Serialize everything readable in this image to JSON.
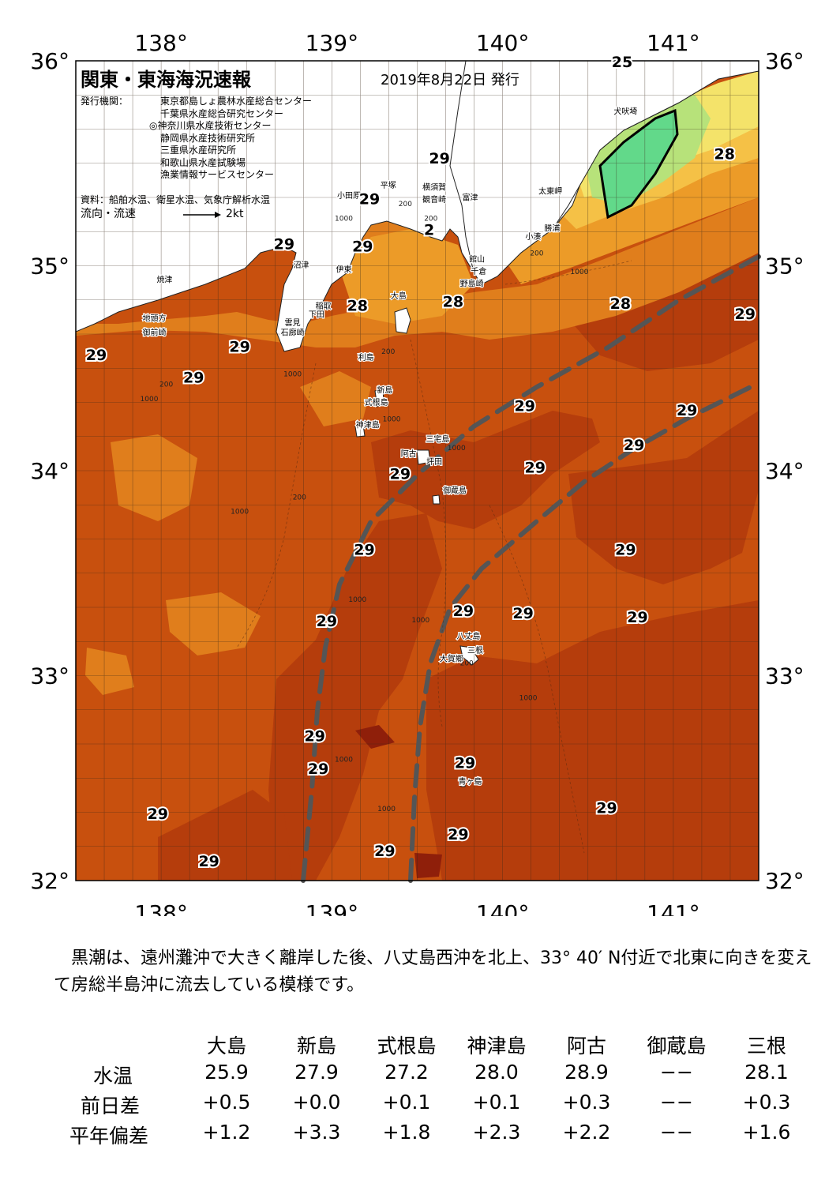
{
  "title": "関東・東海海況速報",
  "issue_date": "2019年8月22日 発行",
  "issuers_label": "発行機関：",
  "issuers": [
    "東京都島しょ農林水産総合センター",
    "千葉県水産総合研究センター",
    "◎神奈川県水産技術センター",
    "静岡県水産技術研究所",
    "三重県水産研究所",
    "和歌山県水産試験場",
    "漁業情報サービスセンター"
  ],
  "sources": "資料：船舶水温、衛星水温、気象庁解析水温",
  "current_legend": "流向・流速",
  "current_scale": "2kt",
  "axes": {
    "lon_labels": [
      "138°",
      "139°",
      "140°",
      "141°"
    ],
    "lat_labels": [
      "36°",
      "35°",
      "34°",
      "33°",
      "32°"
    ],
    "lon_range": [
      137.5,
      141.5
    ],
    "lat_range": [
      32,
      36
    ]
  },
  "colors": {
    "sea_29": "#c8500e",
    "sea_28": "#d7650f",
    "sea_warm_band": "#e07e1c",
    "sea_27": "#ec9b28",
    "sea_26": "#f5c146",
    "sea_25": "#f4e36a",
    "sea_24": "#b7e27a",
    "sea_23": "#62d98a",
    "hot_patch": "#b53d0c",
    "hottest": "#8f1f0a",
    "land": "#ffffff",
    "kuroshio_axis": "#555555"
  },
  "temperature_labels": [
    {
      "text": "25",
      "lon": 140.7,
      "lat": 35.97
    },
    {
      "text": "28",
      "lon": 141.3,
      "lat": 35.52
    },
    {
      "text": "29",
      "lon": 139.63,
      "lat": 35.5
    },
    {
      "text": "29",
      "lon": 139.22,
      "lat": 35.3
    },
    {
      "text": "2",
      "lon": 139.57,
      "lat": 35.15
    },
    {
      "text": "29",
      "lon": 138.72,
      "lat": 35.08
    },
    {
      "text": "29",
      "lon": 139.18,
      "lat": 35.07
    },
    {
      "text": "28",
      "lon": 139.15,
      "lat": 34.78
    },
    {
      "text": "28",
      "lon": 139.71,
      "lat": 34.8
    },
    {
      "text": "28",
      "lon": 140.69,
      "lat": 34.79
    },
    {
      "text": "29",
      "lon": 141.42,
      "lat": 34.74
    },
    {
      "text": "29",
      "lon": 137.62,
      "lat": 34.54
    },
    {
      "text": "29",
      "lon": 138.46,
      "lat": 34.58
    },
    {
      "text": "29",
      "lon": 138.19,
      "lat": 34.43
    },
    {
      "text": "29",
      "lon": 140.13,
      "lat": 34.29
    },
    {
      "text": "29",
      "lon": 141.08,
      "lat": 34.27
    },
    {
      "text": "29",
      "lon": 140.77,
      "lat": 34.1
    },
    {
      "text": "29",
      "lon": 139.4,
      "lat": 33.96
    },
    {
      "text": "29",
      "lon": 140.19,
      "lat": 33.99
    },
    {
      "text": "29",
      "lon": 140.72,
      "lat": 33.59
    },
    {
      "text": "29",
      "lon": 139.19,
      "lat": 33.59
    },
    {
      "text": "29",
      "lon": 139.77,
      "lat": 33.29
    },
    {
      "text": "29",
      "lon": 140.12,
      "lat": 33.28
    },
    {
      "text": "29",
      "lon": 140.79,
      "lat": 33.26
    },
    {
      "text": "29",
      "lon": 138.97,
      "lat": 33.24
    },
    {
      "text": "29",
      "lon": 138.9,
      "lat": 32.68
    },
    {
      "text": "29",
      "lon": 138.92,
      "lat": 32.52
    },
    {
      "text": "29",
      "lon": 139.78,
      "lat": 32.55
    },
    {
      "text": "29",
      "lon": 137.98,
      "lat": 32.3
    },
    {
      "text": "29",
      "lon": 140.61,
      "lat": 32.33
    },
    {
      "text": "29",
      "lon": 139.74,
      "lat": 32.2
    },
    {
      "text": "29",
      "lon": 139.31,
      "lat": 32.12
    },
    {
      "text": "29",
      "lon": 138.28,
      "lat": 32.07
    }
  ],
  "place_labels": [
    {
      "text": "犬吠埼",
      "lon": 140.72,
      "lat": 35.74
    },
    {
      "text": "太東岬",
      "lon": 140.28,
      "lat": 35.35
    },
    {
      "text": "勝浦",
      "lon": 140.29,
      "lat": 35.17
    },
    {
      "text": "小湊",
      "lon": 140.18,
      "lat": 35.13
    },
    {
      "text": "富津",
      "lon": 139.81,
      "lat": 35.32
    },
    {
      "text": "横須賀",
      "lon": 139.6,
      "lat": 35.37
    },
    {
      "text": "観音崎",
      "lon": 139.6,
      "lat": 35.31
    },
    {
      "text": "平塚",
      "lon": 139.33,
      "lat": 35.38
    },
    {
      "text": "小田原",
      "lon": 139.1,
      "lat": 35.33
    },
    {
      "text": "館山",
      "lon": 139.85,
      "lat": 35.02
    },
    {
      "text": "千倉",
      "lon": 139.86,
      "lat": 34.96
    },
    {
      "text": "野島崎",
      "lon": 139.82,
      "lat": 34.9
    },
    {
      "text": "沼津",
      "lon": 138.82,
      "lat": 34.99
    },
    {
      "text": "伊東",
      "lon": 139.07,
      "lat": 34.97
    },
    {
      "text": "焼津",
      "lon": 138.02,
      "lat": 34.92
    },
    {
      "text": "大島",
      "lon": 139.39,
      "lat": 34.84
    },
    {
      "text": "稲取",
      "lon": 138.95,
      "lat": 34.79
    },
    {
      "text": "下田",
      "lon": 138.91,
      "lat": 34.75
    },
    {
      "text": "雲見",
      "lon": 138.77,
      "lat": 34.71
    },
    {
      "text": "石廊崎",
      "lon": 138.77,
      "lat": 34.66
    },
    {
      "text": "地頭方",
      "lon": 137.96,
      "lat": 34.73
    },
    {
      "text": "御前崎",
      "lon": 137.96,
      "lat": 34.66
    },
    {
      "text": "利島",
      "lon": 139.2,
      "lat": 34.54
    },
    {
      "text": "新島",
      "lon": 139.31,
      "lat": 34.38
    },
    {
      "text": "式根島",
      "lon": 139.26,
      "lat": 34.32
    },
    {
      "text": "神津島",
      "lon": 139.21,
      "lat": 34.21
    },
    {
      "text": "三宅島",
      "lon": 139.62,
      "lat": 34.14
    },
    {
      "text": "阿古",
      "lon": 139.45,
      "lat": 34.07
    },
    {
      "text": "坪田",
      "lon": 139.6,
      "lat": 34.03
    },
    {
      "text": "御蔵島",
      "lon": 139.72,
      "lat": 33.89
    },
    {
      "text": "八丈島",
      "lon": 139.8,
      "lat": 33.18
    },
    {
      "text": "三根",
      "lon": 139.84,
      "lat": 33.11
    },
    {
      "text": "大賀郷",
      "lon": 139.7,
      "lat": 33.07
    },
    {
      "text": "青ヶ島",
      "lon": 139.81,
      "lat": 32.47
    }
  ],
  "depth_labels": [
    {
      "text": "200",
      "lon": 139.43,
      "lat": 35.29
    },
    {
      "text": "1000",
      "lon": 139.07,
      "lat": 35.22
    },
    {
      "text": "200",
      "lon": 139.58,
      "lat": 35.22
    },
    {
      "text": "200",
      "lon": 140.2,
      "lat": 35.05
    },
    {
      "text": "1000",
      "lon": 140.45,
      "lat": 34.96
    },
    {
      "text": "200",
      "lon": 139.33,
      "lat": 34.57
    },
    {
      "text": "1000",
      "lon": 138.77,
      "lat": 34.46
    },
    {
      "text": "200",
      "lon": 138.03,
      "lat": 34.41
    },
    {
      "text": "1000",
      "lon": 137.93,
      "lat": 34.34
    },
    {
      "text": "1000",
      "lon": 139.35,
      "lat": 34.24
    },
    {
      "text": "1000",
      "lon": 139.73,
      "lat": 34.1
    },
    {
      "text": "200",
      "lon": 138.81,
      "lat": 33.86
    },
    {
      "text": "1000",
      "lon": 138.46,
      "lat": 33.79
    },
    {
      "text": "1000",
      "lon": 139.15,
      "lat": 33.36
    },
    {
      "text": "1000",
      "lon": 139.52,
      "lat": 33.26
    },
    {
      "text": "200",
      "lon": 139.79,
      "lat": 33.05
    },
    {
      "text": "1000",
      "lon": 140.15,
      "lat": 32.88
    },
    {
      "text": "1000",
      "lon": 139.07,
      "lat": 32.58
    },
    {
      "text": "1000",
      "lon": 139.32,
      "lat": 32.34
    }
  ],
  "comment": "黒潮は、遠州灘沖で大きく離岸した後、八丈島西沖を北上、33° 40′ N付近で北東に向きを変えて房総半島沖に流去している模様です。",
  "table": {
    "columns": [
      "大島",
      "新島",
      "式根島",
      "神津島",
      "阿古",
      "御蔵島",
      "三根"
    ],
    "rows": [
      {
        "label": "水温",
        "values": [
          "25.9",
          "27.9",
          "27.2",
          "28.0",
          "28.9",
          "−−",
          "28.1"
        ]
      },
      {
        "label": "前日差",
        "values": [
          "+0.5",
          "+0.0",
          "+0.1",
          "+0.1",
          "+0.3",
          "−−",
          "+0.3"
        ]
      },
      {
        "label": "平年偏差",
        "values": [
          "+1.2",
          "+3.3",
          "+1.8",
          "+2.3",
          "+2.2",
          "−−",
          "+1.6"
        ]
      }
    ]
  }
}
